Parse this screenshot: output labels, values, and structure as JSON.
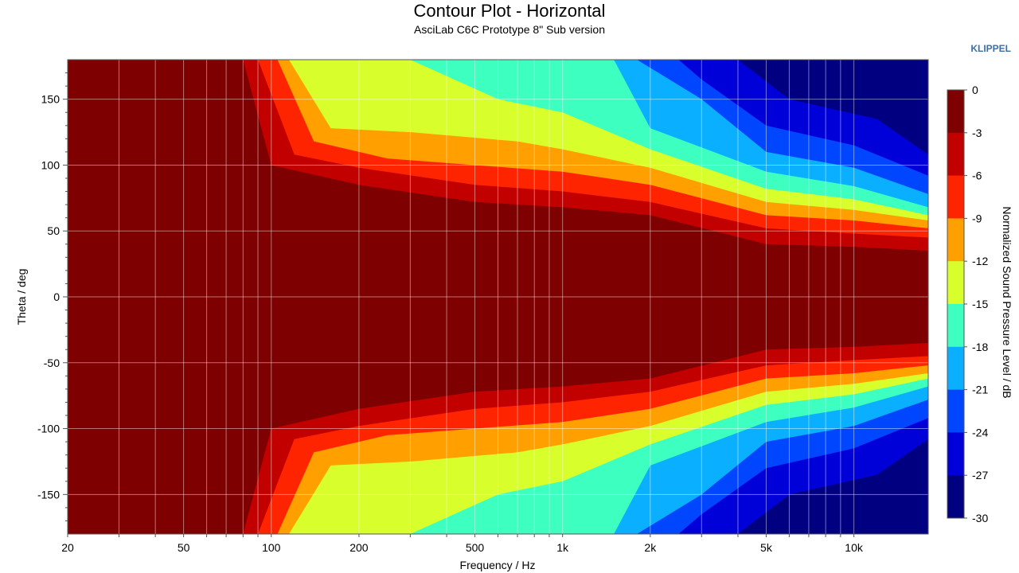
{
  "header": {
    "brand": "KLIPPEL"
  },
  "chart_data": {
    "type": "heatmap",
    "title": "Contour Plot - Horizontal",
    "subtitle": "AsciLab C6C Prototype 8\" Sub version",
    "xlabel": "Frequency / Hz",
    "ylabel": "Theta / deg",
    "x_scale": "log",
    "xlim": [
      20,
      18000
    ],
    "ylim": [
      -180,
      180
    ],
    "x_ticks": [
      20,
      50,
      100,
      200,
      500,
      1000,
      2000,
      5000,
      10000
    ],
    "x_tick_labels": [
      "20",
      "50",
      "100",
      "200",
      "500",
      "1k",
      "2k",
      "5k",
      "10k"
    ],
    "y_ticks": [
      150,
      100,
      50,
      0,
      -50,
      -100,
      -150
    ],
    "y_tick_labels": [
      "150",
      "100",
      "50",
      "0",
      "-50",
      "-100",
      "-150"
    ],
    "grid": true,
    "colorbar": {
      "label": "Normalized Sound Pressure Level / dB",
      "levels": [
        0,
        -3,
        -6,
        -9,
        -12,
        -15,
        -18,
        -21,
        -24,
        -27,
        -30
      ],
      "level_labels": [
        "0",
        "-3",
        "-6",
        "-9",
        "-12",
        "-15",
        "-18",
        "-21",
        "-24",
        "-27",
        "-30"
      ],
      "colors": [
        "#7f0000",
        "#c30000",
        "#ff2400",
        "#ffa000",
        "#d8ff2c",
        "#3cffc0",
        "#0ab0ff",
        "#0046ff",
        "#0000d8",
        "#000080"
      ]
    },
    "contours": [
      {
        "level": -3,
        "theta_boundary": [
          [
            20,
            180
          ],
          [
            80,
            180
          ],
          [
            100,
            100
          ],
          [
            200,
            85
          ],
          [
            500,
            72
          ],
          [
            1000,
            68
          ],
          [
            2000,
            62
          ],
          [
            5000,
            40
          ],
          [
            10000,
            38
          ],
          [
            18000,
            35
          ]
        ]
      },
      {
        "level": -6,
        "theta_boundary": [
          [
            20,
            180
          ],
          [
            90,
            180
          ],
          [
            120,
            108
          ],
          [
            200,
            98
          ],
          [
            500,
            85
          ],
          [
            1000,
            80
          ],
          [
            2000,
            72
          ],
          [
            5000,
            52
          ],
          [
            10000,
            48
          ],
          [
            18000,
            45
          ]
        ]
      },
      {
        "level": -9,
        "theta_boundary": [
          [
            20,
            180
          ],
          [
            105,
            180
          ],
          [
            140,
            118
          ],
          [
            250,
            105
          ],
          [
            500,
            100
          ],
          [
            1000,
            95
          ],
          [
            2000,
            85
          ],
          [
            5000,
            62
          ],
          [
            10000,
            58
          ],
          [
            18000,
            52
          ]
        ]
      },
      {
        "level": -12,
        "theta_boundary": [
          [
            20,
            180
          ],
          [
            115,
            180
          ],
          [
            160,
            128
          ],
          [
            300,
            125
          ],
          [
            700,
            118
          ],
          [
            1000,
            112
          ],
          [
            2000,
            98
          ],
          [
            5000,
            72
          ],
          [
            10000,
            66
          ],
          [
            18000,
            58
          ]
        ]
      },
      {
        "level": -15,
        "theta_boundary": [
          [
            20,
            180
          ],
          [
            300,
            180
          ],
          [
            600,
            150
          ],
          [
            1000,
            140
          ],
          [
            2000,
            112
          ],
          [
            5000,
            82
          ],
          [
            10000,
            74
          ],
          [
            18000,
            62
          ]
        ]
      },
      {
        "level": -18,
        "theta_boundary": [
          [
            20,
            180
          ],
          [
            1500,
            180
          ],
          [
            2000,
            128
          ],
          [
            5000,
            95
          ],
          [
            10000,
            84
          ],
          [
            18000,
            68
          ]
        ]
      },
      {
        "level": -21,
        "theta_boundary": [
          [
            20,
            180
          ],
          [
            1800,
            180
          ],
          [
            3000,
            150
          ],
          [
            5000,
            110
          ],
          [
            10000,
            98
          ],
          [
            18000,
            78
          ]
        ]
      },
      {
        "level": -24,
        "theta_boundary": [
          [
            20,
            180
          ],
          [
            2500,
            180
          ],
          [
            3000,
            165
          ],
          [
            5000,
            130
          ],
          [
            10000,
            115
          ],
          [
            18000,
            92
          ]
        ]
      },
      {
        "level": -27,
        "theta_boundary": [
          [
            20,
            180
          ],
          [
            4000,
            180
          ],
          [
            6000,
            150
          ],
          [
            12000,
            135
          ],
          [
            18000,
            108
          ]
        ]
      }
    ]
  }
}
